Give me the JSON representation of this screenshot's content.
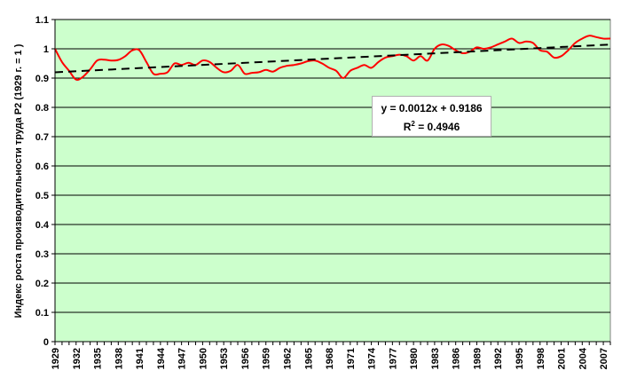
{
  "chart_data": {
    "type": "line",
    "title": "",
    "xlabel": "",
    "ylabel": "Индекс роста производительности труда  P2 (1929 г. = 1 )",
    "ylim": [
      0,
      1.1
    ],
    "yticks": [
      "0",
      "0.1",
      "0.2",
      "0.3",
      "0.4",
      "0.5",
      "0.6",
      "0.7",
      "0.8",
      "0.9",
      "1",
      "1.1"
    ],
    "xlim": [
      1929,
      2008
    ],
    "xticks": [
      "1929",
      "1932",
      "1935",
      "1938",
      "1941",
      "1944",
      "1947",
      "1950",
      "1953",
      "1956",
      "1959",
      "1962",
      "1965",
      "1968",
      "1971",
      "1974",
      "1977",
      "1980",
      "1983",
      "1986",
      "1989",
      "1992",
      "1995",
      "1998",
      "2001",
      "2004",
      "2007"
    ],
    "grid": true,
    "plot_background": "#ccffcc",
    "series": [
      {
        "name": "",
        "color": "#ff0000",
        "style": "solid",
        "x": [
          1929,
          1930,
          1931,
          1932,
          1933,
          1934,
          1935,
          1936,
          1937,
          1938,
          1939,
          1940,
          1941,
          1942,
          1943,
          1944,
          1945,
          1946,
          1947,
          1948,
          1949,
          1950,
          1951,
          1952,
          1953,
          1954,
          1955,
          1956,
          1957,
          1958,
          1959,
          1960,
          1961,
          1962,
          1963,
          1964,
          1965,
          1966,
          1967,
          1968,
          1969,
          1970,
          1971,
          1972,
          1973,
          1974,
          1975,
          1976,
          1977,
          1978,
          1979,
          1980,
          1981,
          1982,
          1983,
          1984,
          1985,
          1986,
          1987,
          1988,
          1989,
          1990,
          1991,
          1992,
          1993,
          1994,
          1995,
          1996,
          1997,
          1998,
          1999,
          2000,
          2001,
          2002,
          2003,
          2004,
          2005,
          2006,
          2007,
          2008
        ],
        "y": [
          1.0,
          0.955,
          0.925,
          0.895,
          0.905,
          0.93,
          0.96,
          0.963,
          0.96,
          0.962,
          0.975,
          0.995,
          0.995,
          0.955,
          0.915,
          0.915,
          0.92,
          0.95,
          0.945,
          0.952,
          0.945,
          0.96,
          0.955,
          0.935,
          0.92,
          0.925,
          0.945,
          0.915,
          0.918,
          0.92,
          0.928,
          0.922,
          0.935,
          0.942,
          0.945,
          0.95,
          0.958,
          0.96,
          0.95,
          0.935,
          0.925,
          0.9,
          0.925,
          0.935,
          0.945,
          0.935,
          0.955,
          0.97,
          0.975,
          0.98,
          0.975,
          0.96,
          0.975,
          0.96,
          1.0,
          1.015,
          1.01,
          0.995,
          0.985,
          0.99,
          1.005,
          1.0,
          1.005,
          1.015,
          1.025,
          1.035,
          1.02,
          1.025,
          1.02,
          0.995,
          0.99,
          0.97,
          0.975,
          0.995,
          1.02,
          1.035,
          1.045,
          1.04,
          1.035,
          1.035
        ]
      },
      {
        "name": "",
        "color": "#000000",
        "style": "dashed",
        "x": [
          1929,
          2008
        ],
        "y": [
          0.9198,
          1.0146
        ]
      }
    ],
    "annotation": {
      "equation": "y = 0.0012x + 0.9186",
      "r2_prefix": "R",
      "r2_sup": "2",
      "r2_value": " = 0.4946"
    }
  }
}
